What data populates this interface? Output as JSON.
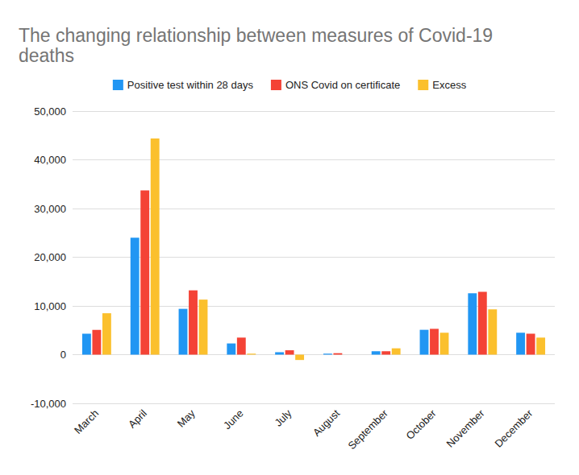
{
  "chart_data": {
    "type": "bar",
    "title": "The changing relationship between measures of Covid-19 deaths",
    "categories": [
      "March",
      "April",
      "May",
      "June",
      "July",
      "August",
      "September",
      "October",
      "November",
      "December"
    ],
    "series": [
      {
        "name": "Positive test within 28 days",
        "color": "#2196f3",
        "values": [
          4300,
          24000,
          9400,
          2300,
          500,
          200,
          700,
          5100,
          12600,
          4500
        ]
      },
      {
        "name": "ONS Covid on certificate",
        "color": "#f44336",
        "values": [
          5100,
          33700,
          13200,
          3500,
          900,
          300,
          700,
          5300,
          12900,
          4300
        ]
      },
      {
        "name": "Excess",
        "color": "#fbc02d",
        "values": [
          8500,
          44400,
          11300,
          200,
          -1100,
          0,
          1300,
          4500,
          9300,
          3500
        ]
      }
    ],
    "ylim": [
      -10000,
      50000
    ],
    "yticks": [
      {
        "value": -10000,
        "label": "-10,000"
      },
      0,
      {
        "value": 10000,
        "label": "10,000"
      },
      {
        "value": 20000,
        "label": "20,000"
      },
      {
        "value": 30000,
        "label": "30,000"
      },
      {
        "value": 40000,
        "label": "40,000"
      },
      {
        "value": 50000,
        "label": "50,000"
      }
    ],
    "grid": true,
    "legend": "top"
  }
}
